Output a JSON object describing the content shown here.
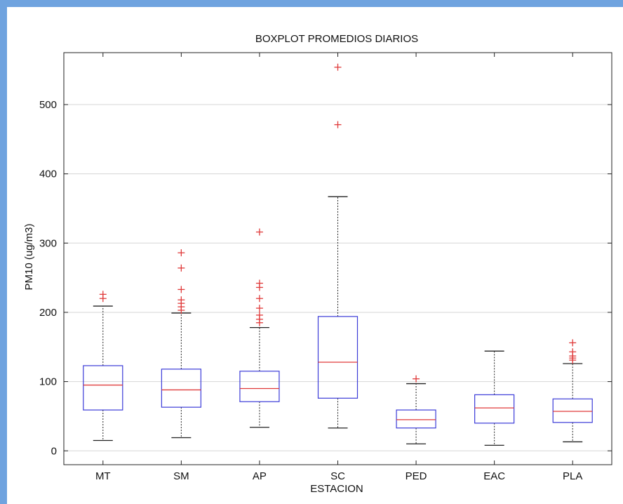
{
  "chart_data": {
    "type": "boxplot",
    "title": "BOXPLOT PROMEDIOS DIARIOS",
    "xlabel": "ESTACION",
    "ylabel": "PM10 (ug/m3)",
    "ylim": [
      -20,
      575
    ],
    "yticks": [
      0,
      100,
      200,
      300,
      400,
      500
    ],
    "ytick_labels": [
      "0",
      "100",
      "200",
      "300",
      "400",
      "500"
    ],
    "grid": "horizontal",
    "colors": {
      "box": "#3b3bd8",
      "median": "#e03a3a",
      "outlier": "#e03a3a",
      "whisker": "#222222",
      "grid": "#d6d6d6"
    },
    "categories": [
      "MT",
      "SM",
      "AP",
      "SC",
      "PED",
      "EAC",
      "PLA"
    ],
    "boxes": [
      {
        "name": "MT",
        "whisker_low": 15,
        "q1": 59,
        "median": 95,
        "q3": 123,
        "whisker_high": 209,
        "outliers": [
          220,
          226
        ]
      },
      {
        "name": "SM",
        "whisker_low": 19,
        "q1": 63,
        "median": 88,
        "q3": 118,
        "whisker_high": 199,
        "outliers": [
          203,
          208,
          213,
          218,
          233,
          264,
          286
        ]
      },
      {
        "name": "AP",
        "whisker_low": 34,
        "q1": 71,
        "median": 90,
        "q3": 115,
        "whisker_high": 178,
        "outliers": [
          185,
          190,
          196,
          206,
          220,
          236,
          242,
          316
        ]
      },
      {
        "name": "SC",
        "whisker_low": 33,
        "q1": 76,
        "median": 128,
        "q3": 194,
        "whisker_high": 367,
        "outliers": [
          471,
          554
        ]
      },
      {
        "name": "PED",
        "whisker_low": 10,
        "q1": 33,
        "median": 45,
        "q3": 59,
        "whisker_high": 97,
        "outliers": [
          104
        ]
      },
      {
        "name": "EAC",
        "whisker_low": 8,
        "q1": 40,
        "median": 62,
        "q3": 81,
        "whisker_high": 144,
        "outliers": []
      },
      {
        "name": "PLA",
        "whisker_low": 13,
        "q1": 41,
        "median": 57,
        "q3": 75,
        "whisker_high": 126,
        "outliers": [
          131,
          134,
          137,
          143,
          156
        ]
      }
    ]
  }
}
